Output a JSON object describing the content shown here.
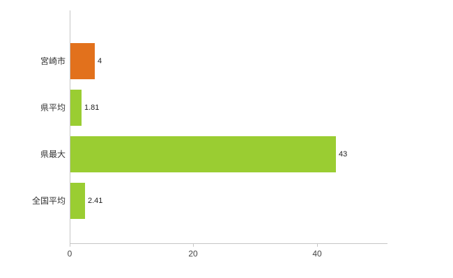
{
  "chart_data": {
    "type": "bar",
    "orientation": "horizontal",
    "title": "",
    "categories": [
      "宮崎市",
      "県平均",
      "県最大",
      "全国平均"
    ],
    "values": [
      4,
      1.81,
      43,
      2.41
    ],
    "value_labels": [
      "4",
      "1.81",
      "43",
      "2.41"
    ],
    "bar_colors": [
      "#E2711C",
      "#9ACD32",
      "#9ACD32",
      "#9ACD32"
    ],
    "x_ticks": [
      0,
      20,
      40
    ],
    "x_tick_labels": [
      "0",
      "20",
      "40"
    ],
    "xlim": [
      0,
      51.3
    ],
    "xlabel": "",
    "ylabel": "",
    "grid": "off",
    "legend": "none",
    "axis_color": "#c6c6c6",
    "label_color": "#333333",
    "value_label_color": "#222222"
  }
}
